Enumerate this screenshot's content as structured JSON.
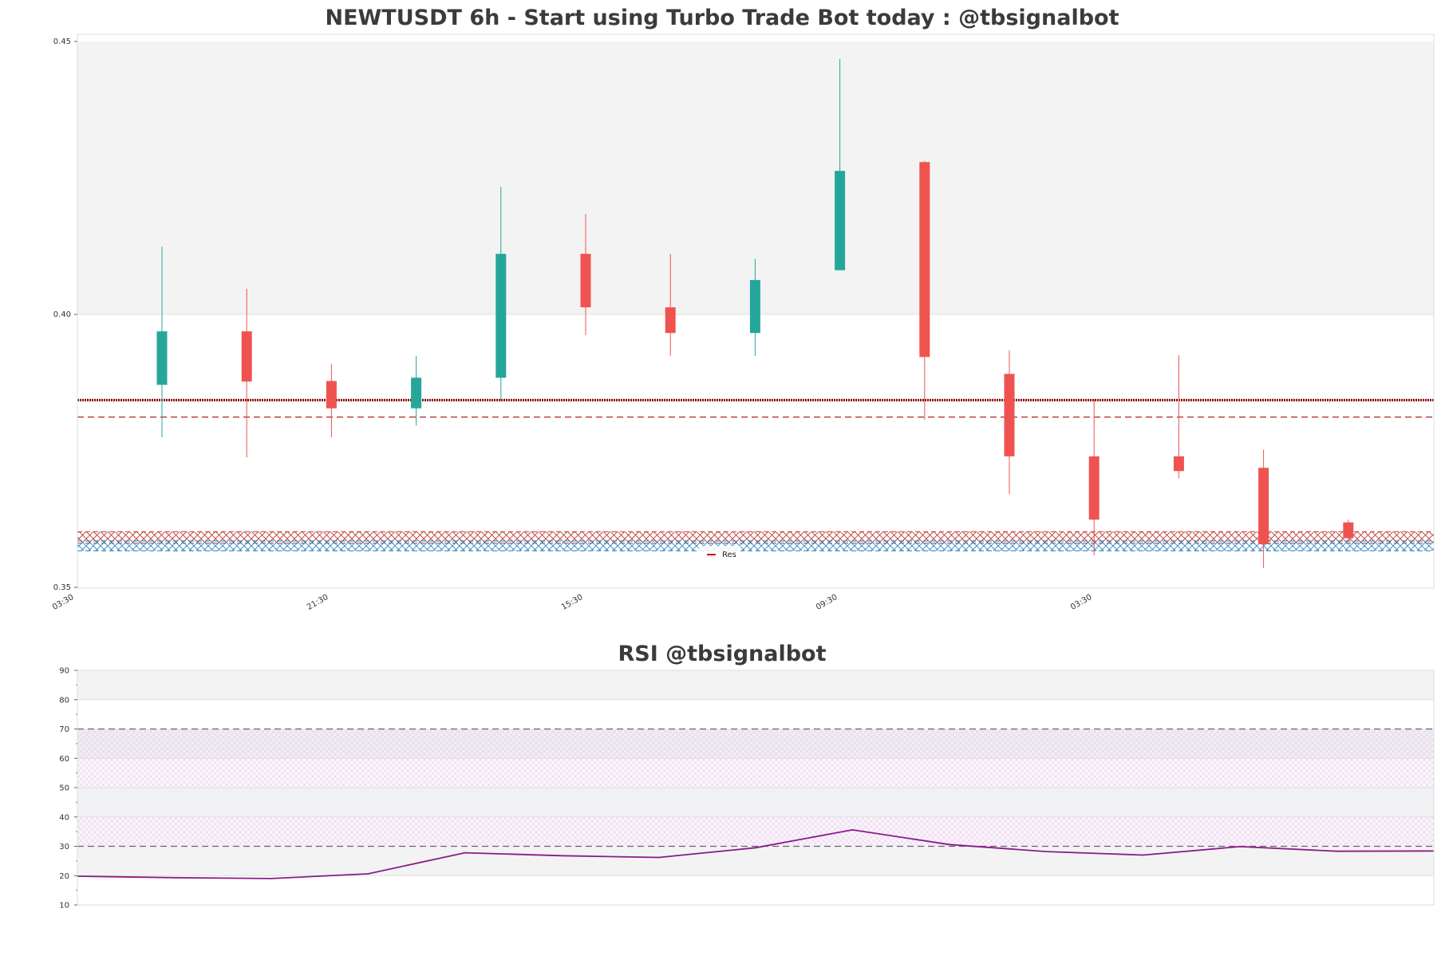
{
  "chart_data": [
    {
      "type": "candlestick",
      "title": "NEWTUSDT 6h - Start using Turbo Trade Bot today : @tbsignalbot",
      "ylim": [
        0.35,
        0.45
      ],
      "y_ticks": [
        "0.35",
        "0.40",
        "0.45"
      ],
      "x_ticks": [
        "03:30",
        "21:30",
        "15:30",
        "09:30",
        "03:30"
      ],
      "bull_color": "#26a69a",
      "bear_color": "#ef5350",
      "candles": [
        {
          "o": 0.3871,
          "h": 0.4124,
          "l": 0.3775,
          "c": 0.3969
        },
        {
          "o": 0.3969,
          "h": 0.4047,
          "l": 0.3738,
          "c": 0.3877
        },
        {
          "o": 0.3878,
          "h": 0.3909,
          "l": 0.3775,
          "c": 0.3828
        },
        {
          "o": 0.3828,
          "h": 0.3924,
          "l": 0.3796,
          "c": 0.3884
        },
        {
          "o": 0.3884,
          "h": 0.4234,
          "l": 0.3842,
          "c": 0.4111
        },
        {
          "o": 0.4111,
          "h": 0.4184,
          "l": 0.3962,
          "c": 0.4013
        },
        {
          "o": 0.4013,
          "h": 0.4111,
          "l": 0.3924,
          "c": 0.3966
        },
        {
          "o": 0.3966,
          "h": 0.4102,
          "l": 0.3924,
          "c": 0.4063
        },
        {
          "o": 0.4081,
          "h": 0.4468,
          "l": 0.4081,
          "c": 0.4263
        },
        {
          "o": 0.4279,
          "h": 0.4281,
          "l": 0.3807,
          "c": 0.3922
        },
        {
          "o": 0.3891,
          "h": 0.3934,
          "l": 0.3671,
          "c": 0.374
        },
        {
          "o": 0.374,
          "h": 0.3845,
          "l": 0.3559,
          "c": 0.3624
        },
        {
          "o": 0.374,
          "h": 0.3925,
          "l": 0.37,
          "c": 0.3713
        },
        {
          "o": 0.3719,
          "h": 0.3752,
          "l": 0.3535,
          "c": 0.3579
        },
        {
          "o": 0.3619,
          "h": 0.3624,
          "l": 0.3583,
          "c": 0.359
        }
      ],
      "resistance_lines": [
        {
          "value": 0.3843,
          "style": "dotted",
          "color": "#8b0000"
        },
        {
          "value": 0.3812,
          "style": "dashed",
          "color": "#b22222"
        }
      ],
      "zones": [
        {
          "from": 0.3581,
          "to": 0.3602,
          "color": "#c0392b"
        },
        {
          "from": 0.3567,
          "to": 0.3585,
          "color": "#1f77b4"
        }
      ],
      "legend": {
        "label": "Res",
        "color": "#cc0000",
        "position": "bottom-center"
      }
    },
    {
      "type": "line",
      "title": "RSI @tbsignalbot",
      "ylim": [
        10,
        90
      ],
      "y_ticks": [
        10,
        20,
        30,
        40,
        50,
        60,
        70,
        80,
        90
      ],
      "overbought": 70,
      "oversold": 30,
      "line_color": "#8b1a8b",
      "values": [
        19.8,
        19.3,
        19.0,
        20.6,
        27.8,
        26.8,
        26.2,
        29.5,
        35.6,
        30.6,
        28.2,
        27.0,
        29.9,
        28.3,
        28.4
      ]
    }
  ]
}
